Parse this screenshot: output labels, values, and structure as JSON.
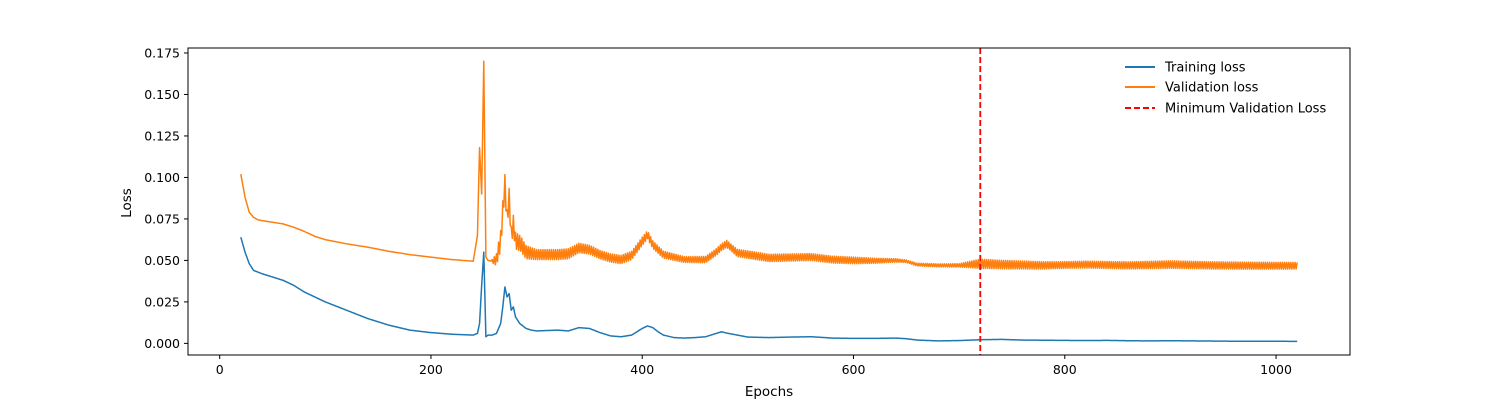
{
  "chart_data": {
    "type": "line",
    "title": "",
    "xlabel": "Epochs",
    "ylabel": "Loss",
    "xlim": [
      -30,
      1070
    ],
    "ylim": [
      -0.007,
      0.178
    ],
    "xticks": [
      0,
      200,
      400,
      600,
      800,
      1000
    ],
    "yticks": [
      0.0,
      0.025,
      0.05,
      0.075,
      0.1,
      0.125,
      0.15,
      0.175
    ],
    "xtick_labels": [
      "0",
      "200",
      "400",
      "600",
      "800",
      "1000"
    ],
    "ytick_labels": [
      "0.000",
      "0.025",
      "0.050",
      "0.075",
      "0.100",
      "0.125",
      "0.150",
      "0.175"
    ],
    "grid": false,
    "legend_position": "top-right",
    "colors": {
      "training": "#1f77b4",
      "validation": "#ff7f0e",
      "minimum": "#ff0000"
    },
    "series": [
      {
        "name": "Training loss",
        "x": [
          20,
          24,
          28,
          32,
          36,
          40,
          50,
          60,
          70,
          80,
          90,
          100,
          120,
          140,
          150,
          160,
          180,
          200,
          220,
          240,
          244,
          246,
          248,
          250,
          252,
          254,
          258,
          262,
          266,
          268,
          270,
          272,
          274,
          276,
          278,
          280,
          284,
          290,
          295,
          300,
          320,
          330,
          340,
          350,
          360,
          370,
          380,
          390,
          400,
          405,
          410,
          415,
          420,
          430,
          440,
          450,
          460,
          470,
          475,
          480,
          490,
          500,
          520,
          540,
          560,
          580,
          600,
          620,
          640,
          650,
          660,
          680,
          700,
          720,
          740,
          760,
          780,
          800,
          820,
          840,
          860,
          880,
          900,
          920,
          940,
          960,
          980,
          1000,
          1020
        ],
        "values": [
          0.064,
          0.055,
          0.048,
          0.044,
          0.043,
          0.042,
          0.04,
          0.038,
          0.035,
          0.031,
          0.028,
          0.025,
          0.02,
          0.015,
          0.013,
          0.011,
          0.008,
          0.0065,
          0.0055,
          0.005,
          0.006,
          0.012,
          0.035,
          0.055,
          0.004,
          0.005,
          0.005,
          0.006,
          0.012,
          0.022,
          0.034,
          0.028,
          0.03,
          0.02,
          0.022,
          0.016,
          0.012,
          0.009,
          0.008,
          0.0075,
          0.008,
          0.0075,
          0.0095,
          0.009,
          0.0065,
          0.0045,
          0.004,
          0.005,
          0.009,
          0.0105,
          0.0095,
          0.007,
          0.005,
          0.0035,
          0.0032,
          0.0035,
          0.004,
          0.006,
          0.007,
          0.0062,
          0.005,
          0.0038,
          0.0035,
          0.0038,
          0.004,
          0.0032,
          0.003,
          0.003,
          0.0032,
          0.0028,
          0.002,
          0.0015,
          0.0017,
          0.0022,
          0.0024,
          0.002,
          0.0019,
          0.0018,
          0.0017,
          0.0018,
          0.0016,
          0.0015,
          0.0016,
          0.0015,
          0.0014,
          0.0013,
          0.0013,
          0.0013,
          0.0012
        ]
      },
      {
        "name": "Validation loss",
        "x": [
          20,
          24,
          28,
          32,
          36,
          40,
          50,
          60,
          70,
          80,
          90,
          100,
          120,
          140,
          160,
          180,
          200,
          220,
          240,
          244,
          246,
          248,
          250,
          252,
          254,
          258,
          262,
          266,
          268,
          270,
          272,
          274,
          276,
          278,
          280,
          285,
          290,
          300,
          320,
          330,
          340,
          350,
          360,
          370,
          380,
          390,
          400,
          405,
          410,
          420,
          440,
          460,
          470,
          475,
          480,
          490,
          520,
          560,
          580,
          600,
          620,
          640,
          650,
          660,
          680,
          700,
          720,
          740,
          780,
          820,
          860,
          900,
          940,
          980,
          1020
        ],
        "values": [
          0.102,
          0.088,
          0.079,
          0.076,
          0.0745,
          0.074,
          0.073,
          0.072,
          0.07,
          0.0675,
          0.0645,
          0.0625,
          0.06,
          0.058,
          0.0555,
          0.0535,
          0.052,
          0.0505,
          0.0495,
          0.065,
          0.118,
          0.09,
          0.17,
          0.052,
          0.05,
          0.0495,
          0.0505,
          0.062,
          0.08,
          0.096,
          0.075,
          0.088,
          0.065,
          0.072,
          0.062,
          0.06,
          0.055,
          0.0535,
          0.0535,
          0.054,
          0.0575,
          0.0565,
          0.0535,
          0.0515,
          0.0505,
          0.053,
          0.0615,
          0.0655,
          0.0595,
          0.0535,
          0.0505,
          0.0505,
          0.055,
          0.058,
          0.06,
          0.0545,
          0.0515,
          0.052,
          0.0505,
          0.05,
          0.0498,
          0.05,
          0.0495,
          0.0475,
          0.047,
          0.047,
          0.048,
          0.0475,
          0.047,
          0.0475,
          0.047,
          0.0475,
          0.047,
          0.0468,
          0.0468
        ],
        "oscillation_start": 258,
        "oscillation_amplitude": [
          [
            258,
            0.002
          ],
          [
            266,
            0.012
          ],
          [
            280,
            0.01
          ],
          [
            300,
            0.006
          ],
          [
            330,
            0.006
          ],
          [
            360,
            0.005
          ],
          [
            400,
            0.005
          ],
          [
            440,
            0.0035
          ],
          [
            500,
            0.0045
          ],
          [
            600,
            0.004
          ],
          [
            650,
            0.0015
          ],
          [
            700,
            0.002
          ],
          [
            720,
            0.0055
          ],
          [
            800,
            0.004
          ],
          [
            900,
            0.0045
          ],
          [
            1020,
            0.004
          ]
        ]
      },
      {
        "name": "Minimum Validation Loss",
        "style": "dashed-vertical",
        "x": 720
      }
    ]
  }
}
